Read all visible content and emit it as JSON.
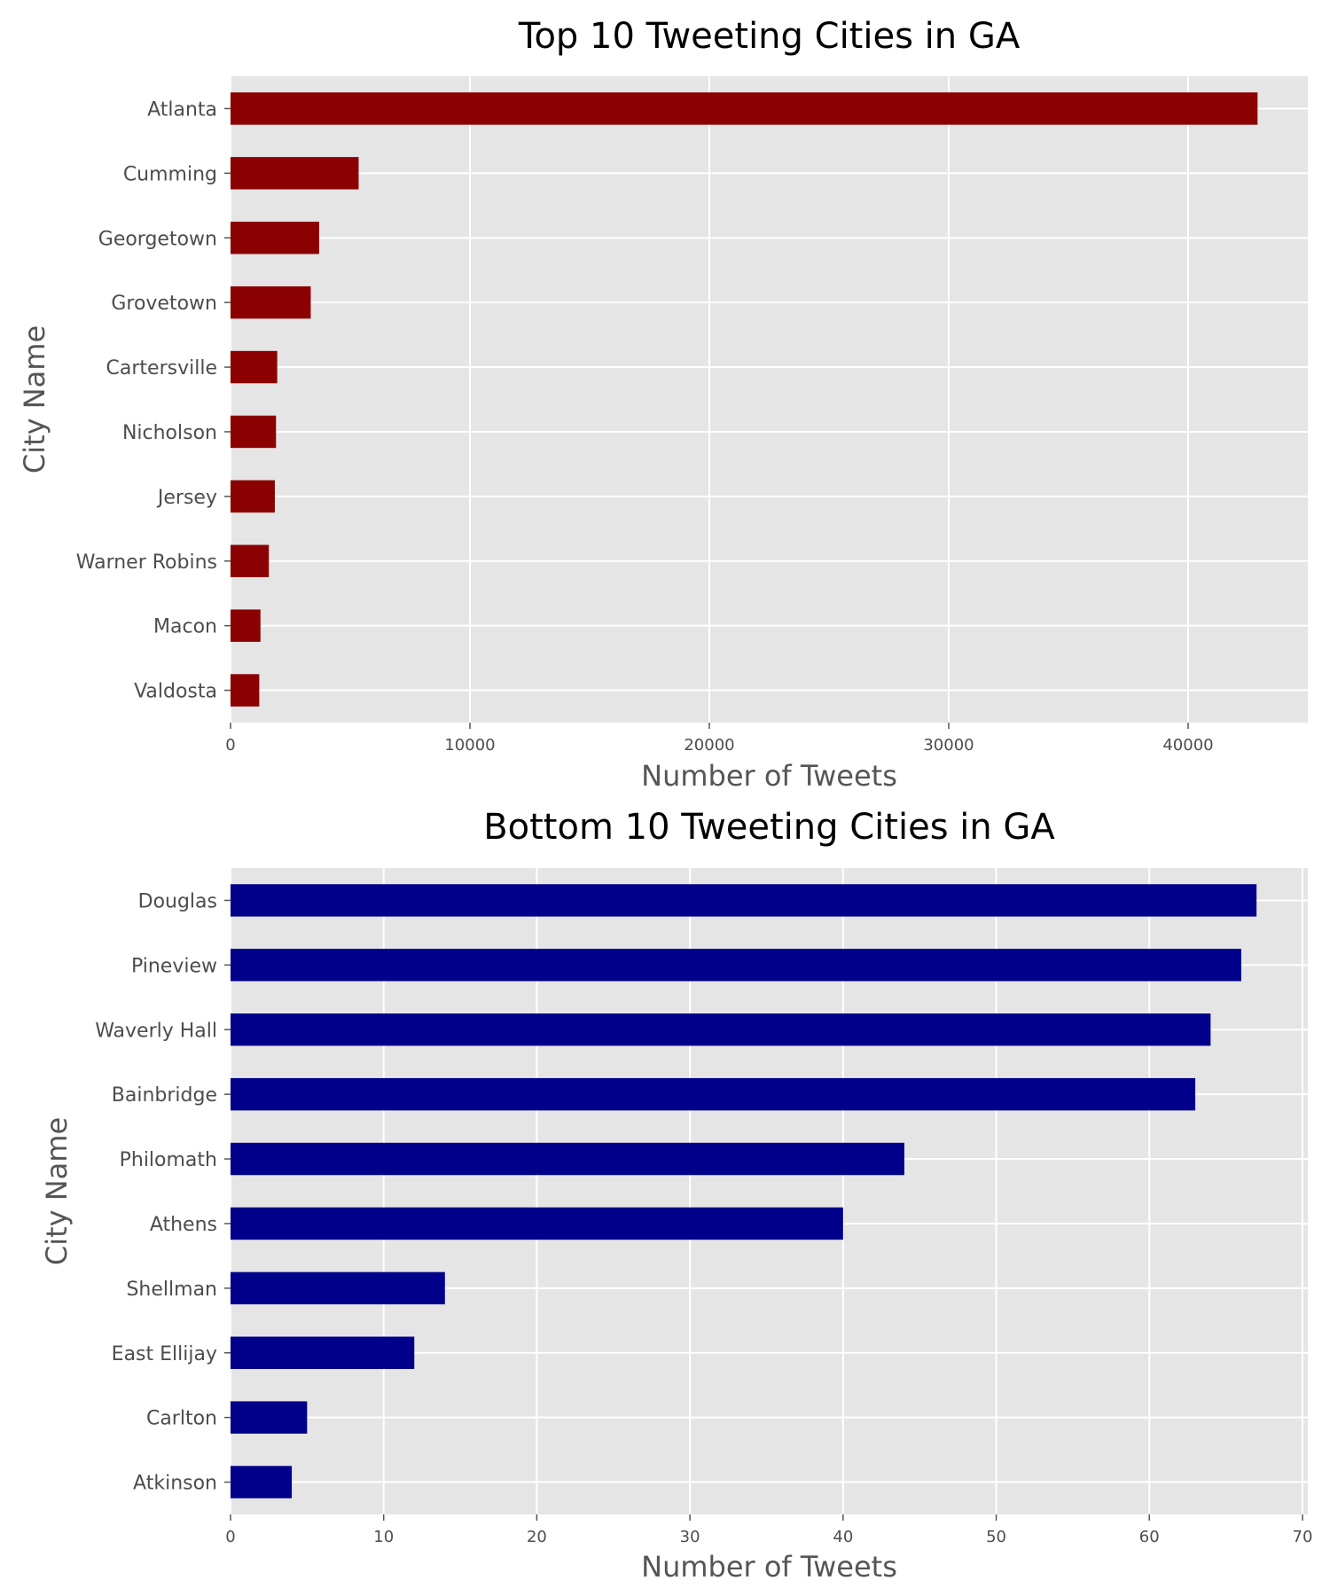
{
  "chart_data": [
    {
      "type": "bar",
      "orientation": "horizontal",
      "title": "Top 10 Tweeting Cities in GA",
      "xlabel": "Number of Tweets",
      "ylabel": "City Name",
      "categories": [
        "Atlanta",
        "Cumming",
        "Georgetown",
        "Grovetown",
        "Cartersville",
        "Nicholson",
        "Jersey",
        "Warner Robins",
        "Macon",
        "Valdosta"
      ],
      "values": [
        42900,
        5350,
        3700,
        3350,
        1950,
        1900,
        1850,
        1600,
        1250,
        1200
      ],
      "xticks": [
        0,
        10000,
        20000,
        30000,
        40000
      ],
      "xlim": [
        0,
        45000
      ],
      "bar_color": "#8b0000",
      "grid": true
    },
    {
      "type": "bar",
      "orientation": "horizontal",
      "title": "Bottom 10 Tweeting Cities in GA",
      "xlabel": "Number of Tweets",
      "ylabel": "City Name",
      "categories": [
        "Douglas",
        "Pineview",
        "Waverly Hall",
        "Bainbridge",
        "Philomath",
        "Athens",
        "Shellman",
        "East Ellijay",
        "Carlton",
        "Atkinson"
      ],
      "values": [
        67,
        66,
        64,
        63,
        44,
        40,
        14,
        12,
        5,
        4
      ],
      "xticks": [
        0,
        10,
        20,
        30,
        40,
        50,
        60,
        70
      ],
      "xlim": [
        0,
        70.35
      ],
      "bar_color": "#00008b",
      "grid": true
    }
  ]
}
